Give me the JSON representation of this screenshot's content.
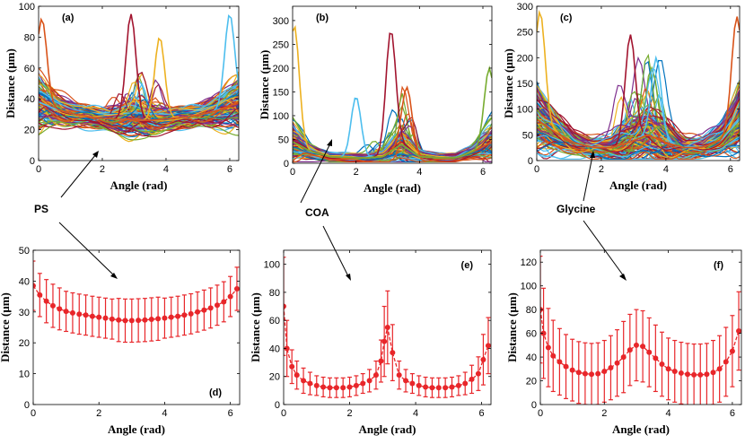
{
  "chart_data": [
    {
      "id": "a",
      "panel_label": "(a)",
      "type": "line",
      "xlabel": "Angle (rad)",
      "ylabel": "Distance (μm)",
      "xlim": [
        0,
        6.283
      ],
      "ylim": [
        0,
        100
      ],
      "xticks": [
        "0",
        "2",
        "4",
        "6"
      ],
      "yticks": [
        "0",
        "20",
        "40",
        "60",
        "80",
        "100"
      ],
      "label_pos": "top-left",
      "series_count": 150,
      "base": [
        38,
        33,
        30,
        28,
        27,
        26.5,
        26,
        27,
        28,
        30,
        33,
        38
      ],
      "spread": [
        24,
        14,
        10,
        9,
        10,
        14,
        14,
        10,
        9,
        10,
        14,
        24
      ],
      "peaks": [
        [
          2.9,
          95
        ],
        [
          3.8,
          80
        ],
        [
          6.0,
          95
        ],
        [
          0.1,
          92
        ]
      ]
    },
    {
      "id": "b",
      "panel_label": "(b)",
      "type": "line",
      "xlabel": "Angle (rad)",
      "ylabel": "Distance (μm)",
      "xlim": [
        0,
        6.283
      ],
      "ylim": [
        0,
        330
      ],
      "xticks": [
        "0",
        "2",
        "4",
        "6"
      ],
      "yticks": [
        "0",
        "50",
        "100",
        "150",
        "200",
        "250",
        "300"
      ],
      "label_pos": "top-left",
      "series_count": 130,
      "base": [
        45,
        25,
        14,
        12,
        11,
        14,
        40,
        14,
        11,
        12,
        25,
        45
      ],
      "spread": [
        60,
        20,
        12,
        12,
        12,
        20,
        60,
        20,
        12,
        12,
        20,
        60
      ],
      "peaks": [
        [
          3.1,
          280
        ],
        [
          0.05,
          290
        ],
        [
          2.0,
          140
        ],
        [
          3.6,
          160
        ],
        [
          6.2,
          200
        ]
      ]
    },
    {
      "id": "c",
      "panel_label": "(c)",
      "type": "line",
      "xlabel": "Angle (rad)",
      "ylabel": "Distance (μm)",
      "xlim": [
        0,
        6.283
      ],
      "ylim": [
        0,
        300
      ],
      "xticks": [
        "0",
        "2",
        "4",
        "6"
      ],
      "yticks": [
        "0",
        "50",
        "100",
        "150",
        "200",
        "250",
        "300"
      ],
      "label_pos": "top-left",
      "series_count": 140,
      "base": [
        80,
        55,
        35,
        26,
        25,
        35,
        50,
        35,
        25,
        26,
        40,
        80
      ],
      "spread": [
        90,
        50,
        30,
        25,
        30,
        60,
        70,
        60,
        30,
        25,
        40,
        90
      ],
      "peaks": [
        [
          2.9,
          245
        ],
        [
          0.1,
          290
        ],
        [
          3.7,
          200
        ],
        [
          6.2,
          280
        ]
      ]
    },
    {
      "id": "d",
      "panel_label": "(d)",
      "type": "line",
      "errorbars": true,
      "color": "#e8262a",
      "xlabel": "Angle (rad)",
      "ylabel": "Distance (μm)",
      "xlim": [
        0,
        6.283
      ],
      "ylim": [
        0,
        50
      ],
      "xticks": [
        "0",
        "2",
        "4",
        "6"
      ],
      "yticks": [
        "0",
        "10",
        "20",
        "30",
        "40",
        "50"
      ],
      "label_pos": "bottom-right",
      "x": [
        0.0,
        0.2,
        0.4,
        0.6,
        0.8,
        1.0,
        1.2,
        1.4,
        1.6,
        1.8,
        2.0,
        2.2,
        2.4,
        2.6,
        2.8,
        3.0,
        3.2,
        3.4,
        3.6,
        3.8,
        4.0,
        4.2,
        4.4,
        4.6,
        4.8,
        5.0,
        5.2,
        5.4,
        5.6,
        5.8,
        6.0,
        6.2
      ],
      "y": [
        38.5,
        35.5,
        33.5,
        32,
        31,
        30.2,
        29.7,
        29.3,
        29,
        28.6,
        28.3,
        28,
        27.7,
        27.4,
        27.2,
        27.2,
        27.3,
        27.4,
        27.6,
        27.8,
        28,
        28.3,
        28.6,
        29,
        29.4,
        30,
        30.6,
        31.3,
        32.2,
        33.3,
        35,
        37.5
      ],
      "err": [
        8,
        7,
        7,
        7,
        6.8,
        6.5,
        6.5,
        6.5,
        6.5,
        6.5,
        6.5,
        6.5,
        6.5,
        7,
        7,
        7,
        7,
        7,
        7,
        7,
        6.5,
        6.5,
        6.5,
        6.5,
        6.5,
        6.5,
        6.5,
        6.5,
        6.5,
        6.5,
        6.5,
        7
      ]
    },
    {
      "id": "e",
      "panel_label": "(e)",
      "type": "line",
      "errorbars": true,
      "color": "#e8262a",
      "xlabel": "Angle (rad)",
      "ylabel": "Distance (μm)",
      "xlim": [
        0,
        6.283
      ],
      "ylim": [
        0,
        110
      ],
      "xticks": [
        "0",
        "2",
        "4",
        "6"
      ],
      "yticks": [
        "0",
        "20",
        "40",
        "60",
        "80",
        "100"
      ],
      "label_pos": "top-right",
      "x": [
        0.0,
        0.1,
        0.25,
        0.4,
        0.6,
        0.8,
        1.0,
        1.2,
        1.4,
        1.6,
        1.8,
        2.0,
        2.2,
        2.4,
        2.6,
        2.8,
        2.95,
        3.05,
        3.15,
        3.3,
        3.5,
        3.7,
        3.9,
        4.1,
        4.3,
        4.5,
        4.7,
        4.9,
        5.1,
        5.3,
        5.5,
        5.7,
        5.9,
        6.05,
        6.2
      ],
      "y": [
        70,
        40,
        27,
        21,
        17,
        15,
        13.5,
        12.5,
        12,
        12,
        12,
        12.5,
        13.5,
        15,
        17,
        21,
        31,
        45,
        55,
        37,
        21,
        17,
        15,
        13.5,
        12.5,
        12,
        12,
        12,
        12.5,
        13.5,
        15,
        18,
        22,
        32,
        42
      ],
      "err": [
        35,
        20,
        12,
        10,
        9,
        8,
        7,
        7,
        7,
        7,
        7,
        7,
        7,
        7,
        8,
        10,
        15,
        25,
        26,
        20,
        10,
        8,
        7,
        7,
        7,
        7,
        7,
        7,
        7,
        7,
        8,
        10,
        12,
        18,
        20
      ]
    },
    {
      "id": "f",
      "panel_label": "(f)",
      "type": "line",
      "errorbars": true,
      "color": "#e8262a",
      "xlabel": "Angle (rad)",
      "ylabel": "Distance (μm)",
      "xlim": [
        0,
        6.283
      ],
      "ylim": [
        0,
        130
      ],
      "xticks": [
        "0",
        "2",
        "4",
        "6"
      ],
      "yticks": [
        "0",
        "20",
        "40",
        "60",
        "80",
        "100",
        "120"
      ],
      "label_pos": "top-right",
      "x": [
        0.0,
        0.1,
        0.25,
        0.4,
        0.6,
        0.8,
        1.0,
        1.2,
        1.4,
        1.6,
        1.8,
        2.0,
        2.2,
        2.4,
        2.6,
        2.8,
        3.0,
        3.2,
        3.4,
        3.6,
        3.8,
        4.0,
        4.2,
        4.4,
        4.6,
        4.8,
        5.0,
        5.2,
        5.4,
        5.6,
        5.8,
        6.0,
        6.2
      ],
      "y": [
        80,
        60,
        48,
        41,
        36,
        32,
        29,
        27,
        26,
        25.5,
        26,
        28,
        31,
        35,
        40,
        46,
        50,
        49,
        44,
        39,
        34,
        30,
        28,
        26.5,
        25.5,
        25,
        25,
        25.5,
        27,
        30,
        36,
        45,
        62
      ],
      "err": [
        45,
        38,
        33,
        30,
        28,
        27,
        26,
        26,
        26,
        26,
        26,
        26,
        27,
        28,
        30,
        30,
        30,
        30,
        29,
        28,
        27,
        26,
        26,
        26,
        26,
        26,
        26,
        26,
        27,
        28,
        29,
        30,
        33
      ]
    }
  ],
  "annotations": [
    {
      "id": "ps",
      "text": "PS"
    },
    {
      "id": "coa",
      "text": "COA"
    },
    {
      "id": "glycine",
      "text": "Glycine"
    }
  ],
  "colors": {
    "matlab": [
      "#0072BD",
      "#D95319",
      "#EDB120",
      "#7E2F8E",
      "#77AC30",
      "#4DBEEE",
      "#A2142F"
    ],
    "error_series": "#e8262a"
  }
}
